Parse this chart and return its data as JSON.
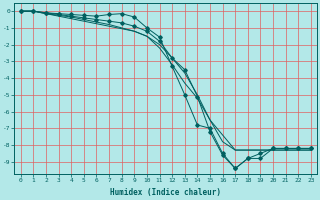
{
  "xlabel": "Humidex (Indice chaleur)",
  "background_color": "#b3e8e8",
  "grid_color": "#e06060",
  "line_color": "#006060",
  "xlim": [
    -0.5,
    23.5
  ],
  "ylim": [
    -9.7,
    0.5
  ],
  "yticks": [
    0,
    -1,
    -2,
    -3,
    -4,
    -5,
    -6,
    -7,
    -8,
    -9
  ],
  "xticks": [
    0,
    1,
    2,
    3,
    4,
    5,
    6,
    7,
    8,
    9,
    10,
    11,
    12,
    13,
    14,
    15,
    16,
    17,
    18,
    19,
    20,
    21,
    22,
    23
  ],
  "series": [
    {
      "x": [
        0,
        1,
        2,
        3,
        4,
        5,
        6,
        7,
        8,
        9,
        10,
        11,
        12,
        13,
        14,
        15,
        16,
        17,
        18,
        19,
        20,
        21,
        22,
        23
      ],
      "y": [
        0,
        0,
        -0.15,
        -0.25,
        -0.35,
        -0.5,
        -0.65,
        -0.8,
        -1.0,
        -1.2,
        -1.5,
        -2.0,
        -2.8,
        -3.7,
        -5.0,
        -6.5,
        -7.8,
        -8.3,
        -8.3,
        -8.3,
        -8.3,
        -8.3,
        -8.3,
        -8.3
      ],
      "has_marker": false
    },
    {
      "x": [
        0,
        1,
        2,
        3,
        4,
        5,
        6,
        7,
        8,
        9,
        10,
        11,
        12,
        13,
        14,
        15,
        16,
        17,
        18,
        19,
        20,
        21,
        22,
        23
      ],
      "y": [
        0,
        0,
        -0.1,
        -0.15,
        -0.2,
        -0.25,
        -0.3,
        -0.2,
        -0.15,
        -0.35,
        -1.0,
        -1.55,
        -3.3,
        -5.0,
        -6.8,
        -7.0,
        -8.5,
        -9.4,
        -8.8,
        -8.5,
        -8.2,
        -8.2,
        -8.2,
        -8.2
      ],
      "has_marker": true
    },
    {
      "x": [
        0,
        1,
        2,
        3,
        4,
        5,
        6,
        7,
        8,
        9,
        10,
        11,
        12,
        13,
        14,
        15,
        16,
        17,
        18,
        19,
        20,
        21,
        22,
        23
      ],
      "y": [
        0,
        0,
        -0.15,
        -0.3,
        -0.45,
        -0.6,
        -0.75,
        -0.9,
        -1.05,
        -1.2,
        -1.5,
        -2.2,
        -3.2,
        -4.3,
        -5.2,
        -6.5,
        -7.4,
        -8.3,
        -8.3,
        -8.3,
        -8.3,
        -8.3,
        -8.3,
        -8.3
      ],
      "has_marker": false
    },
    {
      "x": [
        0,
        1,
        2,
        3,
        4,
        5,
        6,
        7,
        8,
        9,
        10,
        11,
        12,
        13,
        14,
        15,
        16,
        17,
        18,
        19,
        20,
        21,
        22,
        23
      ],
      "y": [
        0,
        0,
        -0.1,
        -0.2,
        -0.3,
        -0.4,
        -0.5,
        -0.6,
        -0.7,
        -0.9,
        -1.2,
        -1.8,
        -2.8,
        -3.5,
        -5.1,
        -7.2,
        -8.6,
        -9.4,
        -8.8,
        -8.8,
        -8.2,
        -8.2,
        -8.2,
        -8.2
      ],
      "has_marker": true
    }
  ]
}
